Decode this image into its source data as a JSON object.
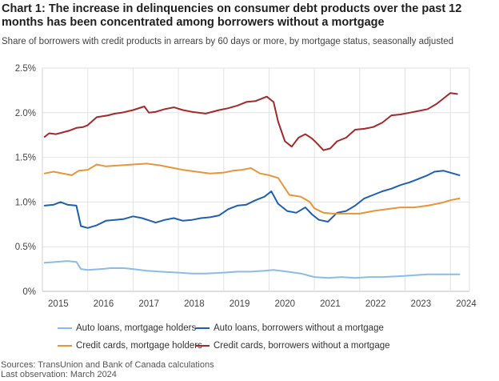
{
  "chart_data": {
    "type": "line",
    "title": "Chart 1: The increase in delinquencies on consumer debt products over the past 12 months has been concentrated among borrowers without a mortgage",
    "subtitle": "Share of borrowers with credit products in arrears by 60 days or more, by mortgage status, seasonally adjusted",
    "xlabel": "",
    "ylabel": "",
    "xlim": [
      2015.0,
      2024.42
    ],
    "ylim": [
      0,
      2.5
    ],
    "x_ticks": [
      "2015",
      "2016",
      "2017",
      "2018",
      "2019",
      "2020",
      "2021",
      "2022",
      "2023",
      "2024"
    ],
    "y_ticks": [
      "0%",
      "0.5%",
      "1.0%",
      "1.5%",
      "2.0%",
      "2.5%"
    ],
    "y_tick_values": [
      0,
      0.5,
      1.0,
      1.5,
      2.0,
      2.5
    ],
    "grid": true,
    "legend_position": "bottom",
    "series": [
      {
        "name": "Auto loans, mortgage holders",
        "color": "#8bbbe8",
        "x": [
          2015.05,
          2015.3,
          2015.55,
          2015.75,
          2015.85,
          2016.0,
          2016.3,
          2016.5,
          2016.8,
          2017.0,
          2017.3,
          2017.6,
          2018.0,
          2018.3,
          2018.6,
          2019.0,
          2019.3,
          2019.6,
          2019.9,
          2020.1,
          2020.4,
          2020.7,
          2021.0,
          2021.3,
          2021.6,
          2021.9,
          2022.2,
          2022.5,
          2022.9,
          2023.2,
          2023.5,
          2023.8,
          2024.2
        ],
        "values": [
          0.32,
          0.33,
          0.34,
          0.33,
          0.25,
          0.24,
          0.25,
          0.26,
          0.26,
          0.25,
          0.23,
          0.22,
          0.21,
          0.2,
          0.2,
          0.21,
          0.22,
          0.22,
          0.23,
          0.24,
          0.22,
          0.2,
          0.16,
          0.15,
          0.16,
          0.15,
          0.16,
          0.16,
          0.17,
          0.18,
          0.19,
          0.19,
          0.19
        ]
      },
      {
        "name": "Auto loans, borrowers without a mortgage",
        "color": "#1f5fb0",
        "x": [
          2015.05,
          2015.25,
          2015.4,
          2015.55,
          2015.75,
          2015.85,
          2016.0,
          2016.2,
          2016.4,
          2016.6,
          2016.8,
          2017.0,
          2017.2,
          2017.5,
          2017.7,
          2017.9,
          2018.1,
          2018.3,
          2018.5,
          2018.7,
          2018.9,
          2019.1,
          2019.3,
          2019.5,
          2019.7,
          2019.9,
          2020.05,
          2020.2,
          2020.4,
          2020.6,
          2020.8,
          2020.95,
          2021.1,
          2021.3,
          2021.5,
          2021.7,
          2021.9,
          2022.1,
          2022.3,
          2022.5,
          2022.7,
          2022.9,
          2023.1,
          2023.3,
          2023.5,
          2023.65,
          2023.85,
          2024.2
        ],
        "values": [
          0.96,
          0.97,
          1.0,
          0.97,
          0.96,
          0.73,
          0.71,
          0.74,
          0.79,
          0.8,
          0.81,
          0.84,
          0.82,
          0.77,
          0.8,
          0.82,
          0.79,
          0.8,
          0.82,
          0.83,
          0.85,
          0.92,
          0.96,
          0.97,
          1.02,
          1.06,
          1.12,
          0.98,
          0.9,
          0.88,
          0.94,
          0.86,
          0.8,
          0.78,
          0.88,
          0.9,
          0.96,
          1.04,
          1.08,
          1.12,
          1.15,
          1.19,
          1.22,
          1.26,
          1.3,
          1.34,
          1.35,
          1.3
        ]
      },
      {
        "name": "Credit cards, mortgage holders",
        "color": "#e8953a",
        "x": [
          2015.05,
          2015.25,
          2015.45,
          2015.65,
          2015.8,
          2016.0,
          2016.2,
          2016.4,
          2016.7,
          2017.0,
          2017.3,
          2017.6,
          2017.9,
          2018.1,
          2018.4,
          2018.7,
          2019.0,
          2019.2,
          2019.4,
          2019.6,
          2019.8,
          2020.0,
          2020.2,
          2020.45,
          2020.7,
          2020.9,
          2021.0,
          2021.2,
          2021.4,
          2021.7,
          2022.0,
          2022.3,
          2022.6,
          2022.9,
          2023.2,
          2023.5,
          2023.8,
          2024.0,
          2024.2
        ],
        "values": [
          1.32,
          1.34,
          1.32,
          1.3,
          1.35,
          1.36,
          1.42,
          1.4,
          1.41,
          1.42,
          1.43,
          1.41,
          1.38,
          1.36,
          1.34,
          1.32,
          1.33,
          1.35,
          1.36,
          1.38,
          1.32,
          1.3,
          1.27,
          1.08,
          1.06,
          1.0,
          0.93,
          0.88,
          0.87,
          0.87,
          0.87,
          0.9,
          0.92,
          0.94,
          0.94,
          0.96,
          0.99,
          1.02,
          1.04
        ]
      },
      {
        "name": "Credit cards, borrowers without a mortgage",
        "color": "#a32a2a",
        "x": [
          2015.05,
          2015.15,
          2015.3,
          2015.45,
          2015.6,
          2015.75,
          2015.9,
          2016.0,
          2016.2,
          2016.45,
          2016.6,
          2016.75,
          2017.0,
          2017.25,
          2017.35,
          2017.5,
          2017.7,
          2017.9,
          2018.1,
          2018.3,
          2018.6,
          2018.9,
          2019.1,
          2019.3,
          2019.5,
          2019.7,
          2019.85,
          2019.95,
          2020.1,
          2020.2,
          2020.35,
          2020.5,
          2020.65,
          2020.8,
          2020.95,
          2021.05,
          2021.2,
          2021.35,
          2021.5,
          2021.7,
          2021.9,
          2022.1,
          2022.3,
          2022.5,
          2022.7,
          2022.9,
          2023.1,
          2023.3,
          2023.5,
          2023.7,
          2023.85,
          2024.0,
          2024.15
        ],
        "values": [
          1.73,
          1.77,
          1.76,
          1.78,
          1.8,
          1.83,
          1.84,
          1.86,
          1.95,
          1.97,
          1.99,
          2.0,
          2.03,
          2.07,
          2.0,
          2.01,
          2.04,
          2.06,
          2.03,
          2.01,
          1.99,
          2.03,
          2.05,
          2.08,
          2.12,
          2.13,
          2.16,
          2.18,
          2.12,
          1.9,
          1.68,
          1.62,
          1.72,
          1.76,
          1.71,
          1.66,
          1.58,
          1.6,
          1.68,
          1.72,
          1.81,
          1.82,
          1.84,
          1.89,
          1.97,
          1.98,
          2.0,
          2.02,
          2.04,
          2.1,
          2.16,
          2.22,
          2.21
        ]
      }
    ]
  },
  "legend": {
    "items": [
      {
        "label": "Auto loans, mortgage holders",
        "color": "#8bbbe8"
      },
      {
        "label": "Auto loans, borrowers without a mortgage",
        "color": "#1f5fb0"
      },
      {
        "label": "Credit cards, mortgage holders",
        "color": "#e8953a"
      },
      {
        "label": "Credit cards, borrowers without a mortgage",
        "color": "#a32a2a"
      }
    ]
  },
  "footer": {
    "sources": "Sources: TransUnion and Bank of Canada calculations",
    "last_observation": "Last observation: March 2024"
  }
}
